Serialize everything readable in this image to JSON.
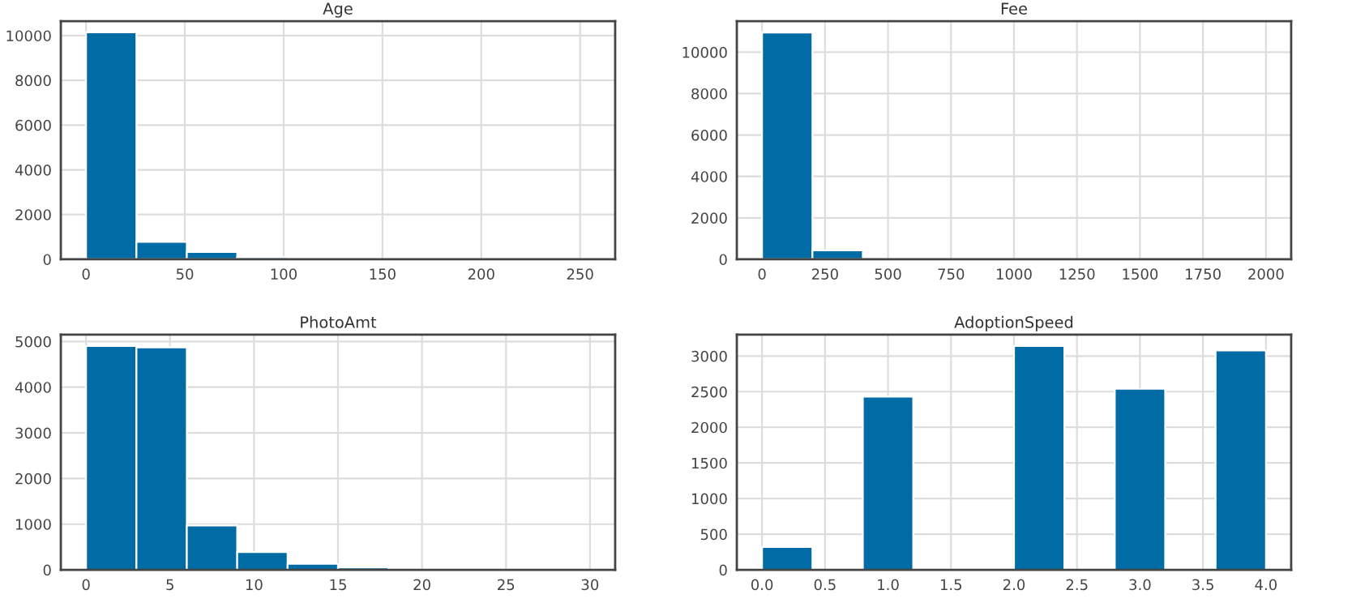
{
  "chart_data": [
    {
      "type": "histogram",
      "title": "Age",
      "bins": [
        0,
        25.5,
        51,
        76.5,
        102,
        127.5,
        153,
        178.5,
        204,
        229.5,
        255
      ],
      "values": [
        10150,
        780,
        330,
        90,
        0,
        0,
        0,
        0,
        0,
        0
      ],
      "color": "#006ba4",
      "xlim": [
        -12.75,
        267.75
      ],
      "ylim": [
        0,
        10650
      ],
      "xticks": [
        0,
        50,
        100,
        150,
        200,
        250
      ],
      "yticks": [
        0,
        2000,
        4000,
        6000,
        8000,
        10000
      ],
      "grid": true
    },
    {
      "type": "histogram",
      "title": "Fee",
      "bins": [
        0,
        200,
        400,
        600,
        800,
        1000,
        1200,
        1400,
        1600,
        1800,
        2000
      ],
      "values": [
        10950,
        430,
        0,
        0,
        0,
        0,
        0,
        0,
        0,
        0
      ],
      "color": "#006ba4",
      "xlim": [
        -100,
        2100
      ],
      "ylim": [
        0,
        11500
      ],
      "xticks": [
        0,
        250,
        500,
        750,
        1000,
        1250,
        1500,
        1750,
        2000
      ],
      "yticks": [
        0,
        2000,
        4000,
        6000,
        8000,
        10000
      ],
      "grid": true
    },
    {
      "type": "histogram",
      "title": "PhotoAmt",
      "bins": [
        0,
        3,
        6,
        9,
        12,
        15,
        18,
        21,
        24,
        27,
        30
      ],
      "values": [
        4900,
        4870,
        970,
        390,
        130,
        50,
        0,
        0,
        0,
        0
      ],
      "color": "#006ba4",
      "xlim": [
        -1.5,
        31.5
      ],
      "ylim": [
        0,
        5150
      ],
      "xticks": [
        0,
        5,
        10,
        15,
        20,
        25,
        30
      ],
      "yticks": [
        0,
        1000,
        2000,
        3000,
        4000,
        5000
      ],
      "grid": true
    },
    {
      "type": "histogram",
      "title": "AdoptionSpeed",
      "bins": [
        0,
        0.4,
        0.8,
        1.2,
        1.6,
        2.0,
        2.4,
        2.8,
        3.2,
        3.6,
        4.0
      ],
      "values": [
        320,
        0,
        2430,
        0,
        0,
        3140,
        0,
        2540,
        0,
        3080
      ],
      "color": "#006ba4",
      "xlim": [
        -0.2,
        4.2
      ],
      "ylim": [
        0,
        3300
      ],
      "xticks": [
        {
          "value": 0,
          "label": "0.0"
        },
        0.5,
        {
          "value": 1,
          "label": "1.0"
        },
        1.5,
        {
          "value": 2,
          "label": "2.0"
        },
        2.5,
        {
          "value": 3,
          "label": "3.0"
        },
        3.5,
        {
          "value": 4,
          "label": "4.0"
        }
      ],
      "yticks": [
        0,
        500,
        1000,
        1500,
        2000,
        2500,
        3000
      ],
      "grid": true
    }
  ]
}
